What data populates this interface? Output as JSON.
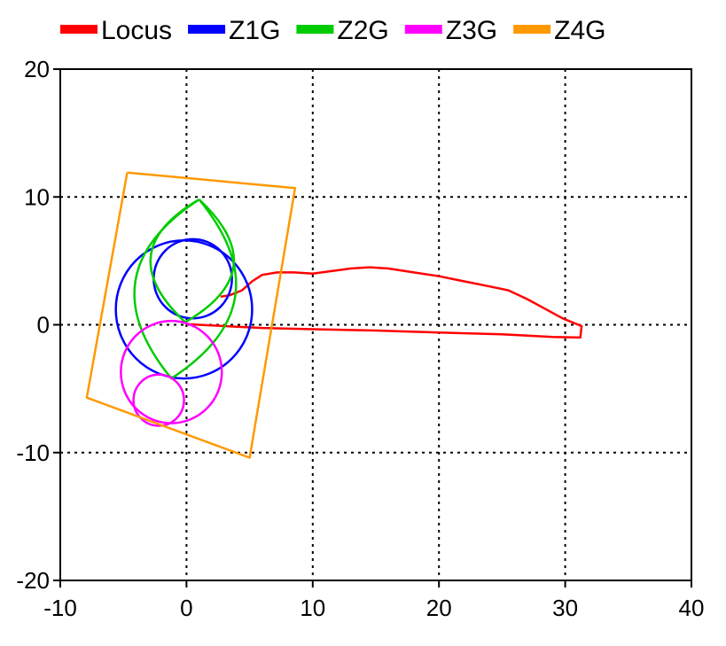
{
  "chart_data": {
    "type": "line",
    "xlim": [
      -10,
      40
    ],
    "ylim": [
      -20,
      20
    ],
    "x_ticks": [
      "-10",
      "0",
      "10",
      "20",
      "30",
      "40"
    ],
    "y_ticks": [
      "-20",
      "-10",
      "0",
      "10",
      "20"
    ],
    "grid": true,
    "grid_style": "dotted",
    "legend_position": "top",
    "series": [
      {
        "name": "Locus",
        "color": "#ff0000",
        "points": [
          [
            2.7,
            2.2
          ],
          [
            3.4,
            2.3
          ],
          [
            4.4,
            2.7
          ],
          [
            5.2,
            3.4
          ],
          [
            6.0,
            3.9
          ],
          [
            7.2,
            4.1
          ],
          [
            8.5,
            4.1
          ],
          [
            10.0,
            4.0
          ],
          [
            11.5,
            4.2
          ],
          [
            13.0,
            4.4
          ],
          [
            14.5,
            4.5
          ],
          [
            16.0,
            4.4
          ],
          [
            18.0,
            4.1
          ],
          [
            20.0,
            3.8
          ],
          [
            22.0,
            3.4
          ],
          [
            24.0,
            3.0
          ],
          [
            25.5,
            2.7
          ],
          [
            27.0,
            2.0
          ],
          [
            28.5,
            1.2
          ],
          [
            29.8,
            0.5
          ],
          [
            30.8,
            0.1
          ],
          [
            31.3,
            -0.1
          ],
          [
            31.2,
            -1.0
          ],
          [
            29.0,
            -0.95
          ],
          [
            25.0,
            -0.75
          ],
          [
            20.0,
            -0.6
          ],
          [
            15.0,
            -0.45
          ],
          [
            10.0,
            -0.35
          ],
          [
            6.0,
            -0.25
          ],
          [
            4.0,
            -0.15
          ],
          [
            2.0,
            -0.05
          ],
          [
            1.0,
            0.0
          ],
          [
            0.0,
            0.05
          ]
        ]
      },
      {
        "name": "Z1G",
        "color": "#0000ff",
        "circles": [
          {
            "cx": -0.2,
            "cy": 1.2,
            "r": 5.4
          },
          {
            "cx": 0.5,
            "cy": 3.6,
            "r": 3.1
          }
        ]
      },
      {
        "name": "Z2G",
        "color": "#00cc00",
        "lenses": [
          {
            "top": [
              1.0,
              9.8
            ],
            "bottom": [
              -1.2,
              -4.2
            ],
            "bulge": 4.0
          },
          {
            "top": [
              1.0,
              9.8
            ],
            "bottom": [
              -0.1,
              0.2
            ],
            "bulge": 3.3
          }
        ]
      },
      {
        "name": "Z3G",
        "color": "#ff00ff",
        "circles": [
          {
            "cx": -1.2,
            "cy": -3.7,
            "r": 4.0
          },
          {
            "cx": -2.2,
            "cy": -5.9,
            "r": 2.0
          }
        ]
      },
      {
        "name": "Z4G",
        "color": "#ff9900",
        "points": [
          [
            -4.7,
            11.9
          ],
          [
            8.6,
            10.7
          ],
          [
            5.0,
            -10.4
          ],
          [
            -7.9,
            -5.7
          ],
          [
            -4.7,
            11.9
          ]
        ]
      }
    ]
  }
}
